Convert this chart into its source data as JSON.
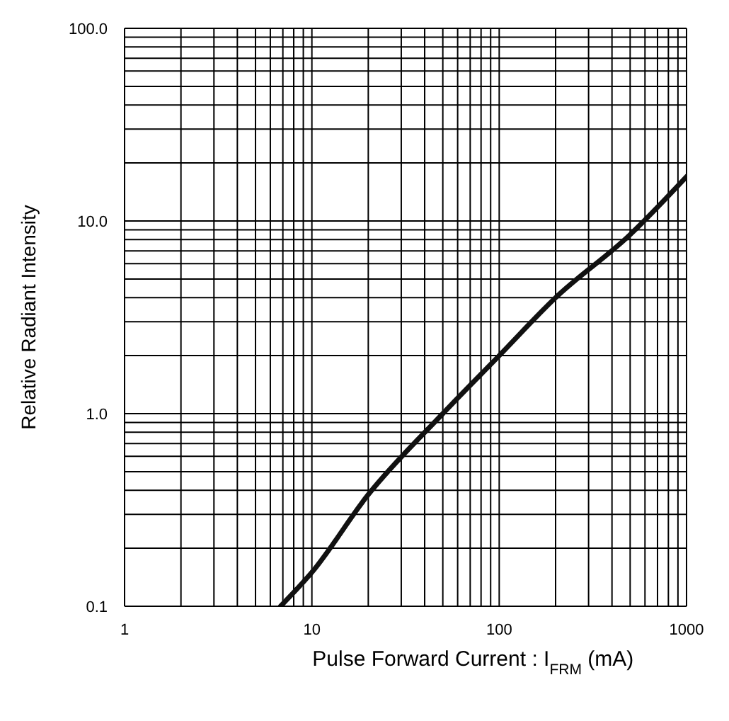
{
  "chart_data": {
    "type": "line",
    "xlabel": "Pulse Forward Current : I$_{FRM}$ (mA)",
    "ylabel": "Relative Radiant Intensity",
    "log": "xy",
    "grid": true,
    "legend": false,
    "marker": "none",
    "line_style": "solid",
    "xlim": [
      1,
      1000
    ],
    "ylim": [
      0.1,
      100
    ],
    "xticks": [
      1,
      {
        "value": 2,
        "label": null
      },
      {
        "value": 3,
        "label": null
      },
      {
        "value": 4,
        "label": null
      },
      {
        "value": 5,
        "label": null
      },
      {
        "value": 6,
        "label": null
      },
      {
        "value": 7,
        "label": null
      },
      {
        "value": 8,
        "label": null
      },
      {
        "value": 9,
        "label": null
      },
      10,
      {
        "value": 20,
        "label": null
      },
      {
        "value": 30,
        "label": null
      },
      {
        "value": 40,
        "label": null
      },
      {
        "value": 50,
        "label": null
      },
      {
        "value": 60,
        "label": null
      },
      {
        "value": 70,
        "label": null
      },
      {
        "value": 80,
        "label": null
      },
      {
        "value": 90,
        "label": null
      },
      100,
      {
        "value": 200,
        "label": null
      },
      {
        "value": 300,
        "label": null
      },
      {
        "value": 400,
        "label": null
      },
      {
        "value": 500,
        "label": null
      },
      {
        "value": 600,
        "label": null
      },
      {
        "value": 700,
        "label": null
      },
      {
        "value": 800,
        "label": null
      },
      {
        "value": 900,
        "label": null
      },
      1000
    ],
    "yticks": [
      0.1,
      {
        "value": 0.2,
        "label": null
      },
      {
        "value": 0.3,
        "label": null
      },
      {
        "value": 0.4,
        "label": null
      },
      {
        "value": 0.5,
        "label": null
      },
      {
        "value": 0.6,
        "label": null
      },
      {
        "value": 0.7,
        "label": null
      },
      {
        "value": 0.8,
        "label": null
      },
      {
        "value": 0.9,
        "label": null
      },
      {
        "value": 1,
        "label": "1.0"
      },
      {
        "value": 2,
        "label": null
      },
      {
        "value": 3,
        "label": null
      },
      {
        "value": 4,
        "label": null
      },
      {
        "value": 5,
        "label": null
      },
      {
        "value": 6,
        "label": null
      },
      {
        "value": 7,
        "label": null
      },
      {
        "value": 8,
        "label": null
      },
      {
        "value": 9,
        "label": null
      },
      {
        "value": 10,
        "label": "10.0"
      },
      {
        "value": 20,
        "label": null
      },
      {
        "value": 30,
        "label": null
      },
      {
        "value": 40,
        "label": null
      },
      {
        "value": 50,
        "label": null
      },
      {
        "value": 60,
        "label": null
      },
      {
        "value": 70,
        "label": null
      },
      {
        "value": 80,
        "label": null
      },
      {
        "value": 90,
        "label": null
      },
      {
        "value": 100,
        "label": "100.0"
      }
    ],
    "series": [
      {
        "color": "#111111",
        "x": [
          6.8,
          10,
          20,
          50,
          100,
          200,
          500,
          1000
        ],
        "values": [
          0.1,
          0.15,
          0.38,
          1.0,
          2.0,
          4.0,
          8.5,
          17
        ]
      }
    ]
  }
}
